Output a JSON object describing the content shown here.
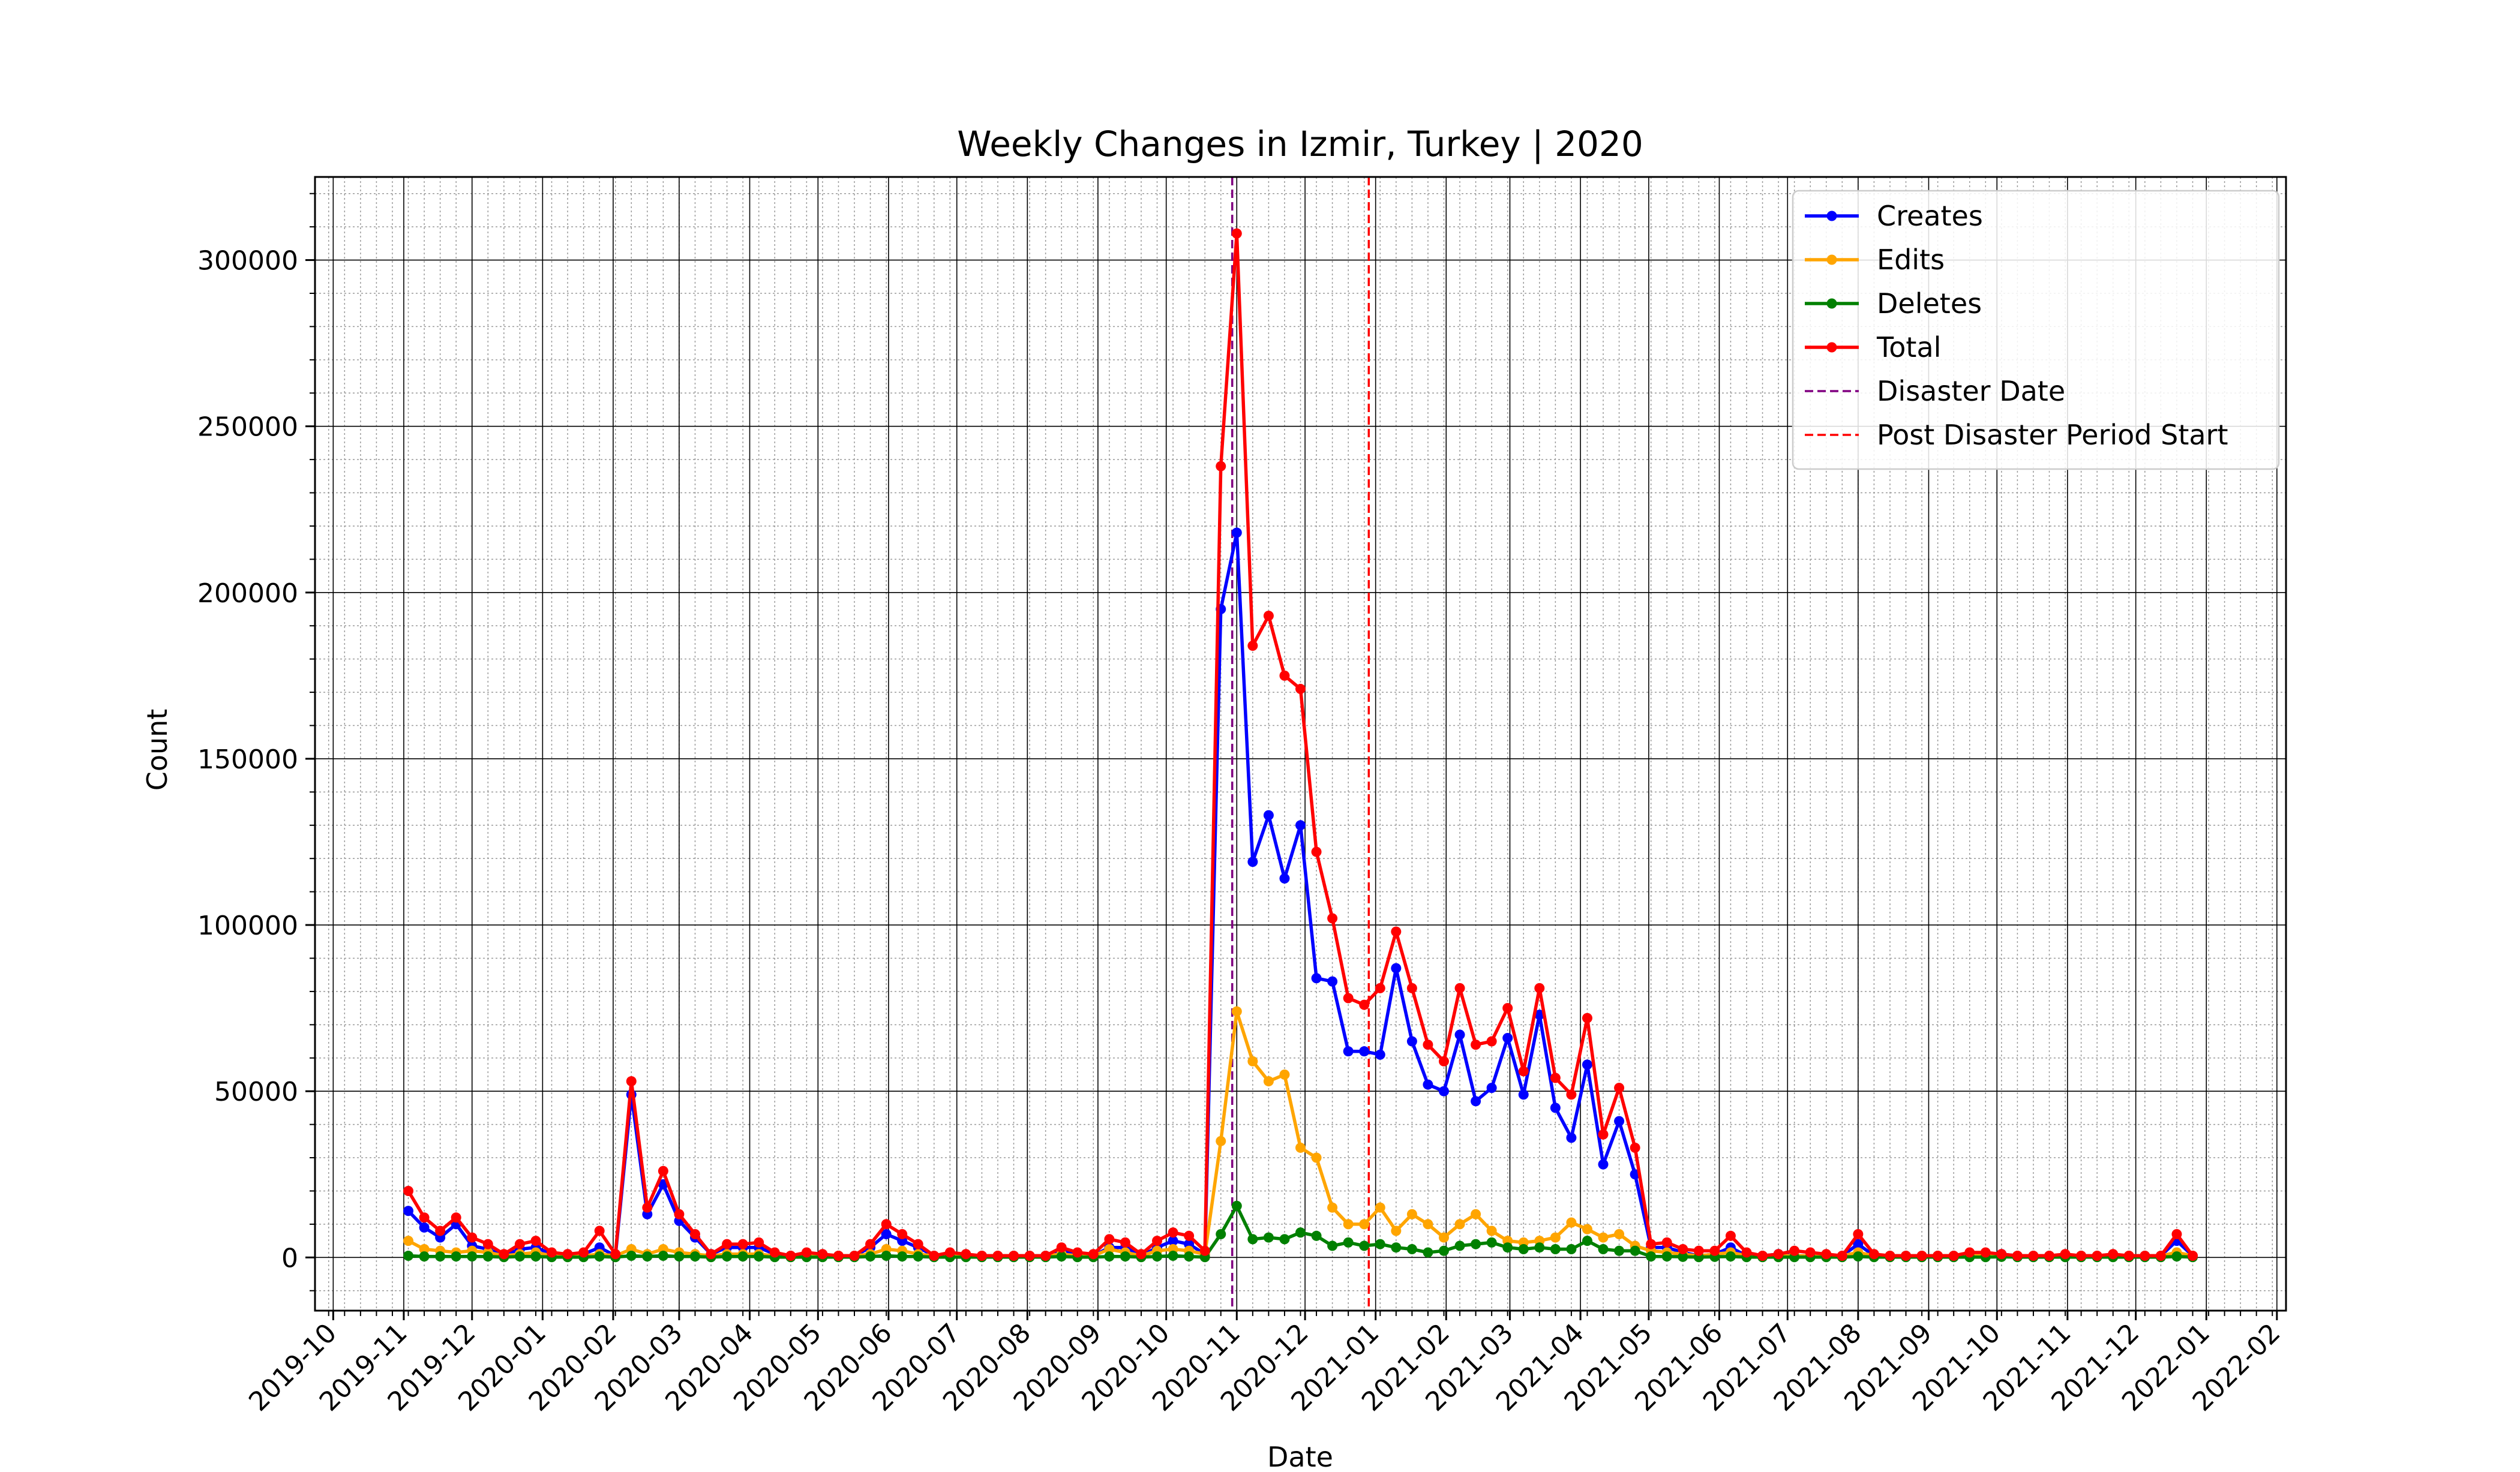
{
  "chart_data": {
    "type": "line",
    "title": "Weekly Changes in Izmir, Turkey | 2020",
    "xlabel": "Date",
    "ylabel": "Count",
    "x_axis_type": "date",
    "xlim": [
      "2019-09-23",
      "2022-02-05"
    ],
    "ylim": [
      -16000,
      325000
    ],
    "x_ticks": [
      "2019-10",
      "2019-11",
      "2019-12",
      "2020-01",
      "2020-02",
      "2020-03",
      "2020-04",
      "2020-05",
      "2020-06",
      "2020-07",
      "2020-08",
      "2020-09",
      "2020-10",
      "2020-11",
      "2020-12",
      "2021-01",
      "2021-02",
      "2021-03",
      "2021-04",
      "2021-05",
      "2021-06",
      "2021-07",
      "2021-08",
      "2021-09",
      "2021-10",
      "2021-11",
      "2021-12",
      "2022-01",
      "2022-02"
    ],
    "y_ticks": [
      0,
      50000,
      100000,
      150000,
      200000,
      250000,
      300000
    ],
    "grid": "major and minor",
    "legend_position": "top-right",
    "start_date": "2019-11-03",
    "x": [
      "2019-11-03",
      "2019-11-10",
      "2019-11-17",
      "2019-11-24",
      "2019-12-01",
      "2019-12-08",
      "2019-12-15",
      "2019-12-22",
      "2019-12-29",
      "2020-01-05",
      "2020-01-12",
      "2020-01-19",
      "2020-01-26",
      "2020-02-02",
      "2020-02-09",
      "2020-02-16",
      "2020-02-23",
      "2020-03-01",
      "2020-03-08",
      "2020-03-15",
      "2020-03-22",
      "2020-03-29",
      "2020-04-05",
      "2020-04-12",
      "2020-04-19",
      "2020-04-26",
      "2020-05-03",
      "2020-05-10",
      "2020-05-17",
      "2020-05-24",
      "2020-05-31",
      "2020-06-07",
      "2020-06-14",
      "2020-06-21",
      "2020-06-28",
      "2020-07-05",
      "2020-07-12",
      "2020-07-19",
      "2020-07-26",
      "2020-08-02",
      "2020-08-09",
      "2020-08-16",
      "2020-08-23",
      "2020-08-30",
      "2020-09-06",
      "2020-09-13",
      "2020-09-20",
      "2020-09-27",
      "2020-10-04",
      "2020-10-11",
      "2020-10-18",
      "2020-10-25",
      "2020-11-01",
      "2020-11-08",
      "2020-11-15",
      "2020-11-22",
      "2020-11-29",
      "2020-12-06",
      "2020-12-13",
      "2020-12-20",
      "2020-12-27",
      "2021-01-03",
      "2021-01-10",
      "2021-01-17",
      "2021-01-24",
      "2021-01-31",
      "2021-02-07",
      "2021-02-14",
      "2021-02-21",
      "2021-02-28",
      "2021-03-07",
      "2021-03-14",
      "2021-03-21",
      "2021-03-28",
      "2021-04-04",
      "2021-04-11",
      "2021-04-18",
      "2021-04-25",
      "2021-05-02",
      "2021-05-09",
      "2021-05-16",
      "2021-05-23",
      "2021-05-30",
      "2021-06-06",
      "2021-06-13",
      "2021-06-20",
      "2021-06-27",
      "2021-07-04",
      "2021-07-11",
      "2021-07-18",
      "2021-07-25",
      "2021-08-01",
      "2021-08-08",
      "2021-08-15",
      "2021-08-22",
      "2021-08-29",
      "2021-09-05",
      "2021-09-12",
      "2021-09-19",
      "2021-09-26",
      "2021-10-03",
      "2021-10-10",
      "2021-10-17",
      "2021-10-24",
      "2021-10-31",
      "2021-11-07",
      "2021-11-14",
      "2021-11-21",
      "2021-11-28",
      "2021-12-05",
      "2021-12-12",
      "2021-12-19",
      "2021-12-26"
    ],
    "series": [
      {
        "name": "Creates",
        "color": "#0000ff",
        "values": [
          14000,
          9000,
          6000,
          10000,
          3500,
          2500,
          500,
          2500,
          3000,
          1000,
          500,
          1000,
          3000,
          500,
          49000,
          13000,
          22000,
          11000,
          6000,
          1000,
          3000,
          3000,
          3000,
          1000,
          500,
          1000,
          500,
          500,
          500,
          3000,
          7000,
          5000,
          3000,
          500,
          1000,
          500,
          500,
          500,
          500,
          500,
          500,
          2000,
          1000,
          500,
          3000,
          3000,
          500,
          3000,
          5000,
          4000,
          1000,
          195000,
          218000,
          119000,
          133000,
          114000,
          130000,
          84000,
          83000,
          62000,
          62000,
          61000,
          87000,
          65000,
          52000,
          50000,
          67000,
          47000,
          51000,
          66000,
          49000,
          73000,
          45000,
          36000,
          58000,
          28000,
          41000,
          25000,
          3000,
          3000,
          1500,
          500,
          1000,
          3000,
          500,
          500,
          1000,
          500,
          500,
          500,
          500,
          4000,
          500,
          500,
          500,
          500,
          500,
          500,
          500,
          500,
          1000,
          500,
          500,
          500,
          500,
          500,
          500,
          500,
          500,
          500,
          500,
          5000,
          500
        ]
      },
      {
        "name": "Edits",
        "color": "#ffa500",
        "values": [
          5000,
          2500,
          2000,
          1500,
          2000,
          1500,
          500,
          1000,
          1500,
          500,
          500,
          500,
          1000,
          500,
          2500,
          1000,
          2500,
          1500,
          1000,
          500,
          1000,
          1000,
          1000,
          500,
          500,
          500,
          500,
          500,
          500,
          1000,
          2500,
          2000,
          1000,
          500,
          500,
          500,
          500,
          500,
          500,
          500,
          500,
          1000,
          500,
          500,
          2500,
          1500,
          500,
          2000,
          2500,
          2000,
          1000,
          35000,
          74000,
          59000,
          53000,
          55000,
          33000,
          30000,
          15000,
          10000,
          10000,
          15000,
          8000,
          13000,
          10000,
          6000,
          10000,
          13000,
          8000,
          5000,
          4500,
          5000,
          6000,
          10500,
          8500,
          6000,
          7000,
          3500,
          2000,
          1500,
          1000,
          500,
          1000,
          1500,
          500,
          500,
          500,
          500,
          500,
          500,
          500,
          1500,
          500,
          500,
          500,
          500,
          500,
          500,
          500,
          500,
          500,
          500,
          500,
          500,
          500,
          500,
          500,
          500,
          500,
          500,
          500,
          1500,
          500
        ]
      },
      {
        "name": "Deletes",
        "color": "#008000",
        "values": [
          500,
          300,
          300,
          300,
          300,
          300,
          100,
          300,
          300,
          100,
          100,
          100,
          300,
          100,
          500,
          300,
          500,
          300,
          300,
          100,
          300,
          300,
          300,
          100,
          100,
          100,
          100,
          100,
          100,
          300,
          500,
          300,
          300,
          100,
          100,
          100,
          100,
          100,
          100,
          100,
          100,
          300,
          100,
          100,
          300,
          300,
          100,
          300,
          500,
          300,
          100,
          7000,
          15500,
          5500,
          6000,
          5500,
          7500,
          6500,
          3500,
          4500,
          3500,
          4000,
          3000,
          2500,
          1500,
          2000,
          3500,
          4000,
          4500,
          3000,
          2500,
          3000,
          2500,
          2500,
          5000,
          2500,
          2000,
          2000,
          300,
          300,
          200,
          100,
          200,
          300,
          100,
          100,
          100,
          100,
          100,
          100,
          100,
          300,
          100,
          100,
          100,
          100,
          100,
          100,
          100,
          100,
          200,
          100,
          100,
          100,
          100,
          100,
          100,
          100,
          100,
          100,
          100,
          300,
          100
        ]
      },
      {
        "name": "Total",
        "color": "#ff0000",
        "values": [
          20000,
          12000,
          8000,
          12000,
          6000,
          4000,
          1000,
          4000,
          5000,
          1500,
          1000,
          1500,
          8000,
          1000,
          53000,
          15000,
          26000,
          13000,
          7000,
          1000,
          4000,
          4000,
          4500,
          1500,
          500,
          1500,
          1000,
          500,
          500,
          4000,
          10000,
          7000,
          4000,
          500,
          1500,
          1000,
          500,
          500,
          500,
          500,
          500,
          3000,
          1500,
          1000,
          5500,
          4500,
          1000,
          5000,
          7500,
          6500,
          2000,
          238000,
          308000,
          184000,
          193000,
          175000,
          171000,
          122000,
          102000,
          78000,
          76000,
          81000,
          98000,
          81000,
          64000,
          59000,
          81000,
          64000,
          65000,
          75000,
          56000,
          81000,
          54000,
          49000,
          72000,
          37000,
          51000,
          33000,
          4000,
          4500,
          2500,
          2000,
          2000,
          6500,
          1500,
          500,
          1000,
          2000,
          1500,
          1000,
          500,
          7000,
          1000,
          500,
          500,
          500,
          500,
          500,
          1500,
          1500,
          1000,
          500,
          500,
          500,
          1000,
          500,
          500,
          1000,
          500,
          500,
          500,
          7000,
          500
        ]
      }
    ],
    "vlines": [
      {
        "name": "Disaster Date",
        "date": "2020-10-30",
        "color": "#800080",
        "style": "dashed"
      },
      {
        "name": "Post Disaster Period Start",
        "date": "2020-12-29",
        "color": "#ff0000",
        "style": "dashed"
      }
    ]
  }
}
